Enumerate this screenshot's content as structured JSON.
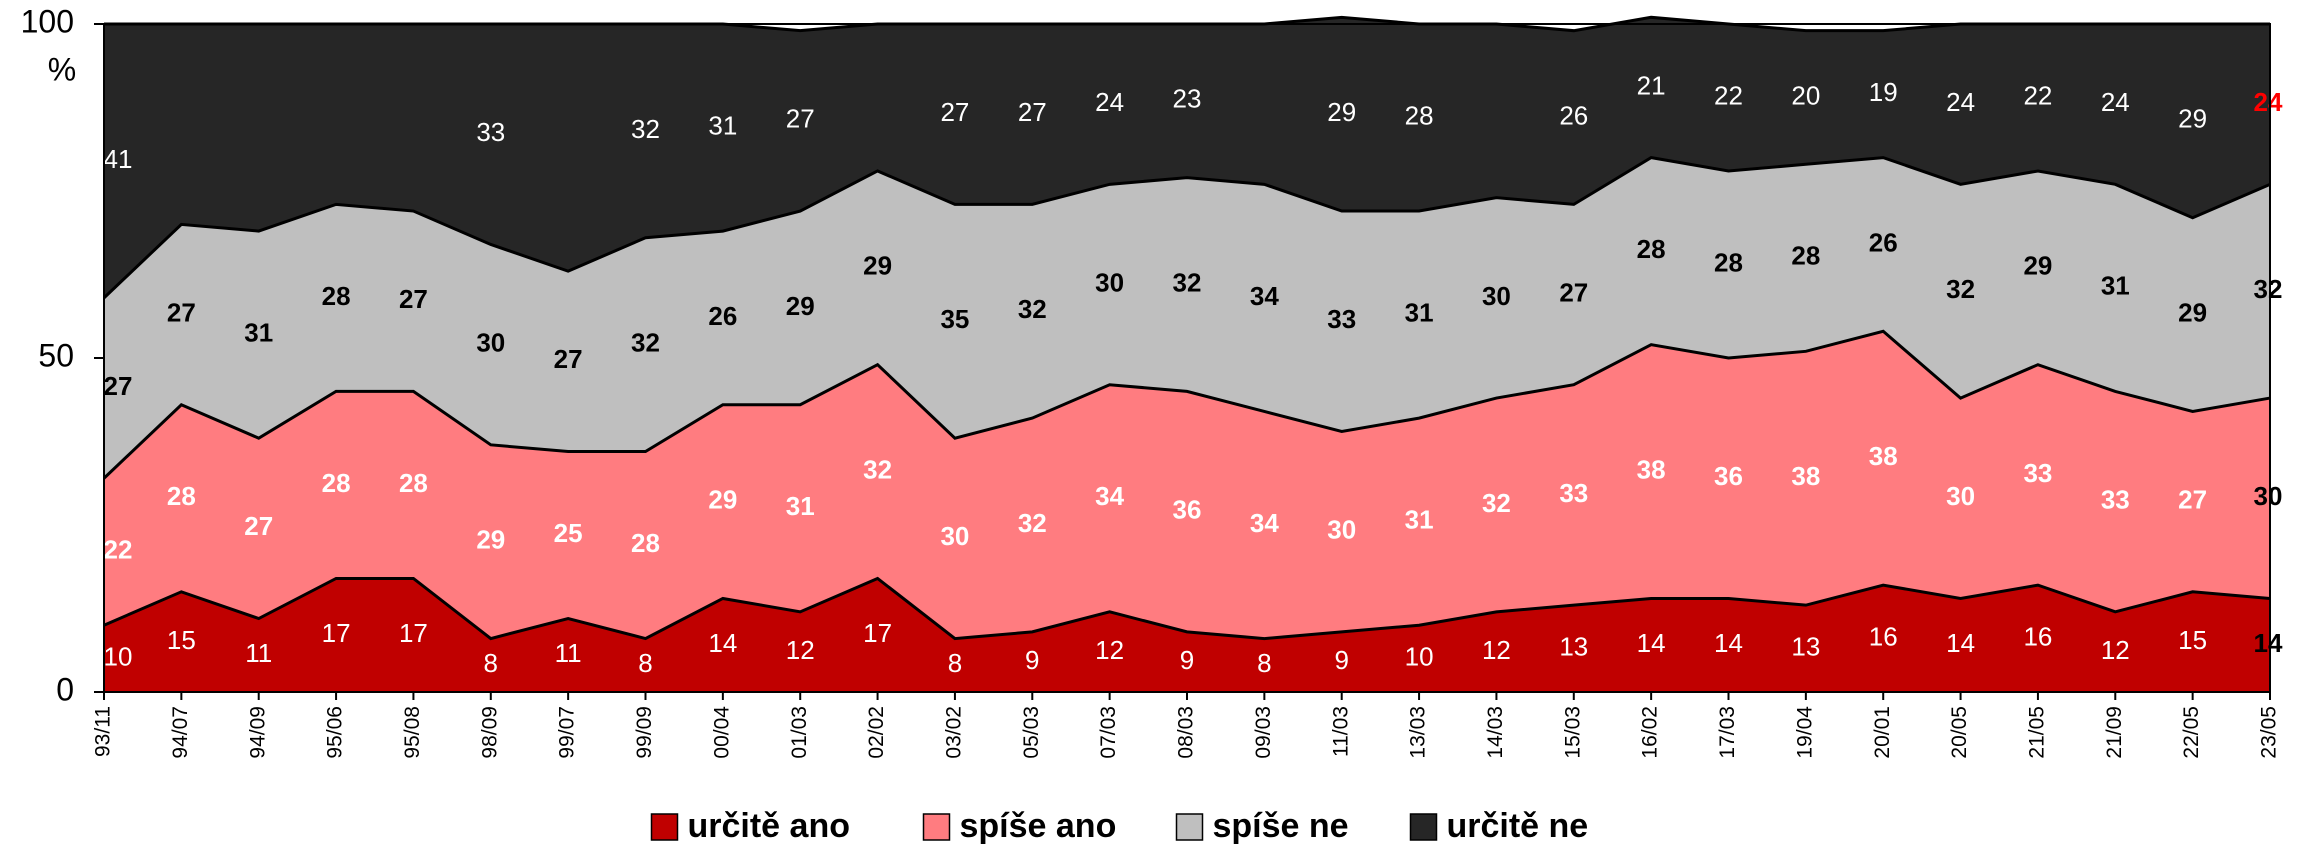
{
  "chart_data": {
    "type": "stacked_area",
    "ylabel": "%",
    "categories": [
      "93/11",
      "94/07",
      "94/09",
      "95/06",
      "95/08",
      "98/09",
      "99/07",
      "99/09",
      "00/04",
      "01/03",
      "02/02",
      "03/02",
      "05/03",
      "07/03",
      "08/03",
      "09/03",
      "11/03",
      "13/03",
      "14/03",
      "15/03",
      "16/02",
      "17/03",
      "19/04",
      "20/01",
      "20/05",
      "21/05",
      "21/09",
      "22/05",
      "23/05"
    ],
    "ylim": [
      0,
      100
    ],
    "yticks": [
      0,
      50,
      100
    ],
    "series": [
      {
        "name": "určitě ano",
        "color": "#c00000",
        "label_color": "#ffffff",
        "values": [
          10,
          15,
          11,
          17,
          17,
          8,
          11,
          8,
          14,
          12,
          17,
          8,
          9,
          12,
          9,
          8,
          9,
          10,
          12,
          13,
          14,
          14,
          13,
          16,
          14,
          16,
          12,
          15,
          14
        ]
      },
      {
        "name": "spíše ano",
        "color": "#ff7c80",
        "label_color": "#ffffff",
        "values": [
          22,
          28,
          27,
          28,
          28,
          29,
          25,
          28,
          29,
          31,
          32,
          30,
          32,
          34,
          36,
          34,
          30,
          31,
          32,
          33,
          38,
          36,
          38,
          38,
          30,
          33,
          33,
          27,
          30
        ]
      },
      {
        "name": "spíše ne",
        "color": "#bfbfbf",
        "label_color": "#000000",
        "values": [
          27,
          27,
          31,
          28,
          27,
          30,
          27,
          32,
          26,
          29,
          29,
          35,
          32,
          30,
          32,
          34,
          33,
          31,
          30,
          27,
          28,
          28,
          28,
          26,
          32,
          29,
          31,
          29,
          32
        ]
      },
      {
        "name": "určitě ne",
        "color": "#262626",
        "label_color": "#ffffff",
        "values": [
          41,
          30,
          31,
          27,
          28,
          33,
          37,
          32,
          31,
          27,
          22,
          27,
          27,
          24,
          23,
          24,
          29,
          28,
          26,
          26,
          21,
          22,
          20,
          19,
          24,
          22,
          24,
          29,
          24
        ],
        "value_labels": [
          "41",
          null,
          null,
          null,
          null,
          "33",
          null,
          "32",
          "31",
          "27",
          null,
          "27",
          "27",
          "24",
          "23",
          null,
          "29",
          "28",
          null,
          "26",
          "21",
          "22",
          "20",
          "19",
          "24",
          "22",
          "24",
          "29",
          "24"
        ]
      }
    ],
    "last_label_colors": [
      "#000000",
      "#000000",
      "#000000",
      "#ff0000"
    ],
    "legend": "bottom"
  }
}
